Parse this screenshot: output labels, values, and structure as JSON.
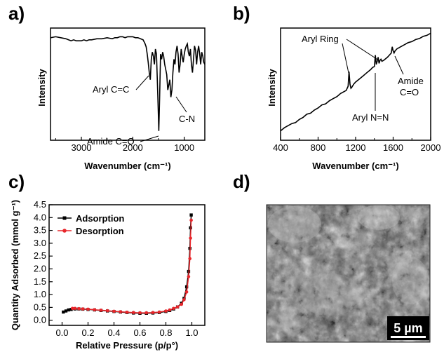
{
  "panels": {
    "a": {
      "letter": "a)"
    },
    "b": {
      "letter": "b)"
    },
    "c": {
      "letter": "c)"
    },
    "d": {
      "letter": "d)",
      "scale_bar_label": "5 µm"
    }
  },
  "chart_data": [
    {
      "panel": "a",
      "type": "line",
      "xlabel": "Wavenumber (cm⁻¹)",
      "ylabel": "Intensity",
      "xlim": [
        3600,
        600
      ],
      "x_reversed": true,
      "x_ticks": [
        3000,
        2000,
        1000
      ],
      "y_ticks_shown": false,
      "series": [
        {
          "x": [
            3600,
            3500,
            3400,
            3300,
            3250,
            3200,
            3150,
            3100,
            3000,
            2950,
            2900,
            2850,
            2800,
            2700,
            2600,
            2500,
            2400,
            2350,
            2300,
            2250,
            2200,
            2150,
            2100,
            2000,
            1950,
            1900,
            1850,
            1800,
            1780,
            1760,
            1740,
            1720,
            1700,
            1680,
            1660,
            1640,
            1620,
            1600,
            1580,
            1560,
            1540,
            1520,
            1505,
            1495,
            1480,
            1460,
            1440,
            1420,
            1400,
            1380,
            1360,
            1340,
            1320,
            1300,
            1280,
            1260,
            1240,
            1220,
            1200,
            1180,
            1160,
            1140,
            1120,
            1100,
            1080,
            1060,
            1040,
            1020,
            1000,
            980,
            960,
            940,
            920,
            900,
            880,
            860,
            840,
            820,
            800,
            780,
            760,
            740,
            720,
            700,
            680,
            660,
            640,
            620,
            600
          ],
          "y": [
            0.96,
            0.97,
            0.96,
            0.95,
            0.94,
            0.93,
            0.94,
            0.93,
            0.93,
            0.94,
            0.93,
            0.94,
            0.94,
            0.95,
            0.95,
            0.96,
            0.95,
            0.96,
            0.96,
            0.97,
            0.97,
            0.96,
            0.97,
            0.97,
            0.96,
            0.96,
            0.95,
            0.94,
            0.92,
            0.9,
            0.87,
            0.8,
            0.72,
            0.62,
            0.55,
            0.75,
            0.82,
            0.78,
            0.7,
            0.85,
            0.8,
            0.5,
            0.25,
            0.05,
            0.35,
            0.8,
            0.75,
            0.82,
            0.78,
            0.7,
            0.65,
            0.6,
            0.45,
            0.5,
            0.55,
            0.38,
            0.45,
            0.62,
            0.75,
            0.7,
            0.82,
            0.88,
            0.8,
            0.62,
            0.7,
            0.85,
            0.78,
            0.72,
            0.8,
            0.85,
            0.88,
            0.9,
            0.82,
            0.78,
            0.85,
            0.7,
            0.62,
            0.75,
            0.88,
            0.84,
            0.7,
            0.82,
            0.88,
            0.8,
            0.7,
            0.82,
            0.78,
            0.72,
            0.7
          ]
        }
      ],
      "annotations": [
        {
          "text": "Aryl C=C",
          "x": 1640,
          "y": 0.55
        },
        {
          "text": "Amide C=O",
          "x": 1500,
          "y": 0.05
        },
        {
          "text": "C-N",
          "x": 1240,
          "y": 0.38
        }
      ]
    },
    {
      "panel": "b",
      "type": "line",
      "xlabel": "Wavenumber (cm⁻¹)",
      "ylabel": "Intensity",
      "xlim": [
        400,
        2000
      ],
      "x_ticks": [
        400,
        800,
        1200,
        1600,
        2000
      ],
      "y_ticks_shown": false,
      "series": [
        {
          "x": [
            400,
            440,
            480,
            520,
            560,
            600,
            640,
            680,
            720,
            760,
            800,
            840,
            880,
            920,
            960,
            1000,
            1040,
            1080,
            1100,
            1120,
            1130,
            1140,
            1150,
            1160,
            1180,
            1200,
            1240,
            1280,
            1320,
            1360,
            1380,
            1400,
            1410,
            1420,
            1430,
            1440,
            1450,
            1460,
            1470,
            1480,
            1500,
            1540,
            1560,
            1580,
            1590,
            1600,
            1610,
            1620,
            1640,
            1680,
            1720,
            1760,
            1800,
            1840,
            1880,
            1920,
            1960,
            2000
          ],
          "y": [
            0.05,
            0.08,
            0.1,
            0.12,
            0.13,
            0.16,
            0.18,
            0.21,
            0.22,
            0.25,
            0.27,
            0.3,
            0.31,
            0.34,
            0.36,
            0.38,
            0.41,
            0.43,
            0.44,
            0.48,
            0.62,
            0.5,
            0.46,
            0.47,
            0.5,
            0.52,
            0.55,
            0.58,
            0.61,
            0.64,
            0.66,
            0.67,
            0.78,
            0.69,
            0.72,
            0.76,
            0.7,
            0.73,
            0.74,
            0.72,
            0.73,
            0.76,
            0.78,
            0.8,
            0.86,
            0.82,
            0.8,
            0.82,
            0.84,
            0.86,
            0.88,
            0.9,
            0.91,
            0.93,
            0.94,
            0.96,
            0.97,
            0.99
          ]
        }
      ],
      "annotations": [
        {
          "text": "Aryl Ring",
          "x": 1140,
          "y": 0.62
        },
        {
          "text": "Aryl N=N",
          "x": 1410,
          "y": 0.78
        },
        {
          "text": "Amide",
          "x": 1590,
          "y": 0.86
        },
        {
          "text": "C=O",
          "x": 1590,
          "y": 0.86
        }
      ]
    },
    {
      "panel": "c",
      "type": "line",
      "xlabel": "Relative Pressure (p/p°)",
      "ylabel": "Quantity Adsorbed (mmol g⁻¹)",
      "xlim": [
        -0.1,
        1.1
      ],
      "ylim": [
        -0.2,
        4.5
      ],
      "x_ticks": [
        0.0,
        0.2,
        0.4,
        0.6,
        0.8,
        1.0
      ],
      "y_ticks": [
        0.0,
        0.5,
        1.0,
        1.5,
        2.0,
        2.5,
        3.0,
        3.5,
        4.0,
        4.5
      ],
      "legend_position": "top-left",
      "series": [
        {
          "name": "Adsorption",
          "color": "#000000",
          "x": [
            0.01,
            0.03,
            0.05,
            0.07,
            0.1,
            0.13,
            0.16,
            0.2,
            0.25,
            0.3,
            0.35,
            0.4,
            0.45,
            0.5,
            0.55,
            0.6,
            0.65,
            0.7,
            0.75,
            0.8,
            0.83,
            0.86,
            0.89,
            0.92,
            0.94,
            0.96,
            0.975,
            0.985,
            0.99,
            0.995
          ],
          "y": [
            0.32,
            0.36,
            0.4,
            0.42,
            0.44,
            0.44,
            0.43,
            0.42,
            0.4,
            0.38,
            0.36,
            0.34,
            0.32,
            0.3,
            0.28,
            0.27,
            0.27,
            0.28,
            0.3,
            0.34,
            0.38,
            0.44,
            0.52,
            0.66,
            0.85,
            1.3,
            1.9,
            2.8,
            3.6,
            4.1
          ]
        },
        {
          "name": "Desorption",
          "color": "#e8262b",
          "x": [
            0.995,
            0.99,
            0.985,
            0.975,
            0.96,
            0.94,
            0.92,
            0.89,
            0.86,
            0.83,
            0.8,
            0.75,
            0.7,
            0.65,
            0.6,
            0.55,
            0.5,
            0.45,
            0.4,
            0.35,
            0.3,
            0.25,
            0.2,
            0.16,
            0.13,
            0.1,
            0.08
          ],
          "y": [
            3.9,
            3.2,
            2.4,
            1.7,
            1.1,
            0.8,
            0.62,
            0.52,
            0.46,
            0.4,
            0.36,
            0.32,
            0.3,
            0.29,
            0.29,
            0.3,
            0.31,
            0.33,
            0.35,
            0.37,
            0.39,
            0.41,
            0.43,
            0.44,
            0.45,
            0.46,
            0.46
          ]
        }
      ]
    }
  ]
}
